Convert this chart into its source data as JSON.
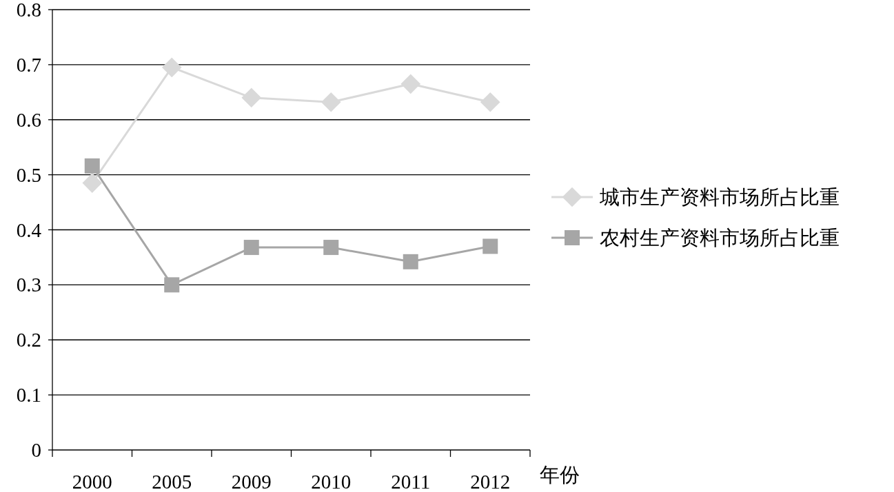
{
  "chart_data": {
    "type": "line",
    "xlabel": "年份",
    "categories": [
      "2000",
      "2005",
      "2009",
      "2010",
      "2011",
      "2012"
    ],
    "series": [
      {
        "name": "城市生产资料市场所占比重",
        "color": "#d9d9d9",
        "marker": "diamond",
        "values": [
          0.485,
          0.695,
          0.64,
          0.632,
          0.665,
          0.632
        ]
      },
      {
        "name": "农村生产资料市场所占比重",
        "color": "#a6a6a6",
        "marker": "square",
        "values": [
          0.516,
          0.3,
          0.368,
          0.368,
          0.342,
          0.37
        ]
      }
    ],
    "ylim": [
      0,
      0.8
    ],
    "yticks": [
      0,
      0.1,
      0.2,
      0.3,
      0.4,
      0.5,
      0.6,
      0.7,
      0.8
    ],
    "grid": "y",
    "legend": "right"
  }
}
